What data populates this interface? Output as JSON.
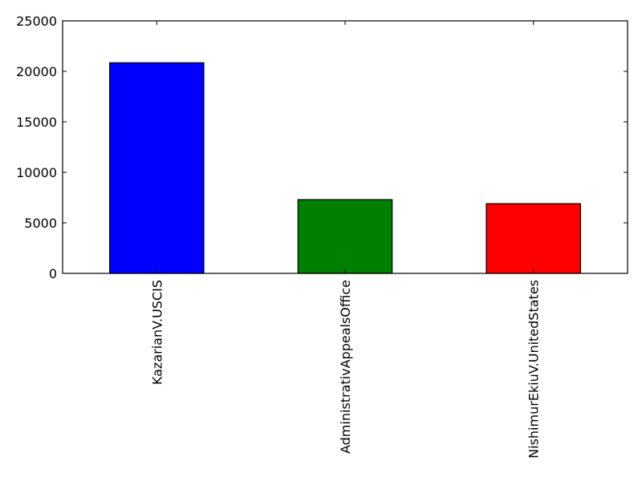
{
  "chart_data": {
    "type": "bar",
    "categories": [
      "KazarianV.USCIS",
      "AdministrativAppealsOffice",
      "NishimurEkiuV.UnitedStates"
    ],
    "values": [
      20850,
      7300,
      6900
    ],
    "colors": [
      "#0000ff",
      "#008000",
      "#ff0000"
    ],
    "title": "",
    "xlabel": "",
    "ylabel": "",
    "ylim": [
      0,
      25000
    ],
    "yticks": [
      0,
      5000,
      10000,
      15000,
      20000,
      25000
    ],
    "ytick_labels": [
      "0",
      "5000",
      "10000",
      "15000",
      "20000",
      "25000"
    ],
    "xtick_rotation": "vertical",
    "grid": false,
    "legend": "none"
  }
}
